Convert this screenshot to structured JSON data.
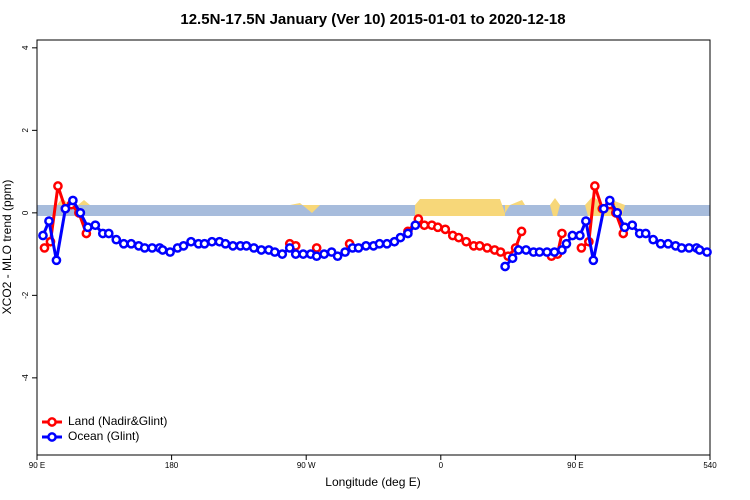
{
  "chart_data": {
    "type": "line",
    "title": "12.5N-17.5N January (Ver 10)   2015-01-01 to 2020-12-18",
    "xlabel": "Longitude (deg E)",
    "ylabel": "XCO2 - MLO trend (ppm)",
    "xlim": [
      90,
      540
    ],
    "ylim": [
      -5.87,
      4.19
    ],
    "xticks": [
      {
        "value": 90,
        "label": "90 E"
      },
      180,
      {
        "value": 270,
        "label": "90 W"
      },
      {
        "value": 360,
        "label": "0"
      },
      {
        "value": 450,
        "label": "90 E"
      },
      540
    ],
    "yticks": [
      -4,
      -2,
      0,
      2,
      4
    ],
    "legend": "bottomleft",
    "series": [
      {
        "name": "Land (Nadir&Glint)",
        "color": "#ff0000",
        "x": [
          95,
          99,
          104,
          109,
          113,
          118,
          123,
          null,
          259,
          263,
          null,
          277,
          null,
          299,
          null,
          338,
          345,
          349,
          354,
          358,
          363,
          368,
          372,
          377,
          382,
          386,
          391,
          396,
          400,
          405,
          410,
          414,
          null,
          434,
          438,
          441,
          null,
          454,
          459,
          463,
          468,
          473,
          477,
          482
        ],
        "values": [
          -0.85,
          -0.7,
          0.65,
          0.1,
          0.2,
          0.0,
          -0.5,
          null,
          -0.75,
          -0.8,
          null,
          -0.85,
          null,
          -0.75,
          null,
          -0.45,
          -0.15,
          -0.3,
          -0.3,
          -0.35,
          -0.4,
          -0.55,
          -0.6,
          -0.7,
          -0.8,
          -0.8,
          -0.85,
          -0.9,
          -0.95,
          -1.05,
          -0.85,
          -0.45,
          null,
          -1.05,
          -1.0,
          -0.5,
          null,
          -0.85,
          -0.7,
          0.65,
          0.1,
          0.2,
          0.0,
          -0.5
        ]
      },
      {
        "name": "Ocean (Glint)",
        "color": "#0000ff",
        "x": [
          94,
          98,
          103,
          109,
          114,
          119,
          124,
          129,
          134,
          138,
          143,
          148,
          153,
          158,
          162,
          167,
          172,
          174,
          179,
          184,
          188,
          193,
          198,
          202,
          207,
          212,
          216,
          221,
          226,
          230,
          235,
          240,
          245,
          249,
          254,
          259,
          263,
          268,
          273,
          277,
          282,
          287,
          291,
          296,
          301,
          305,
          310,
          315,
          319,
          324,
          329,
          333,
          338,
          343,
          null,
          403,
          408,
          412,
          417,
          422,
          426,
          431,
          436,
          441,
          444,
          448,
          453,
          457,
          462,
          469,
          473,
          478,
          483,
          488,
          493,
          497,
          502,
          507,
          512,
          517,
          521,
          526,
          531,
          533,
          538
        ],
        "values": [
          -0.55,
          -0.2,
          -1.15,
          0.1,
          0.3,
          0.0,
          -0.35,
          -0.3,
          -0.5,
          -0.5,
          -0.65,
          -0.75,
          -0.75,
          -0.8,
          -0.85,
          -0.85,
          -0.85,
          -0.9,
          -0.95,
          -0.85,
          -0.8,
          -0.7,
          -0.75,
          -0.75,
          -0.7,
          -0.7,
          -0.75,
          -0.8,
          -0.8,
          -0.8,
          -0.85,
          -0.9,
          -0.9,
          -0.95,
          -1.0,
          -0.85,
          -1.0,
          -1.0,
          -1.0,
          -1.05,
          -1.0,
          -0.95,
          -1.05,
          -0.95,
          -0.85,
          -0.85,
          -0.8,
          -0.8,
          -0.75,
          -0.75,
          -0.7,
          -0.6,
          -0.5,
          -0.3,
          null,
          -1.3,
          -1.1,
          -0.9,
          -0.9,
          -0.95,
          -0.95,
          -0.95,
          -0.95,
          -0.9,
          -0.75,
          -0.55,
          -0.55,
          -0.2,
          -1.15,
          0.1,
          0.3,
          0.0,
          -0.35,
          -0.3,
          -0.5,
          -0.5,
          -0.65,
          -0.75,
          -0.75,
          -0.8,
          -0.85,
          -0.85,
          -0.85,
          -0.9,
          -0.95
        ]
      }
    ]
  }
}
